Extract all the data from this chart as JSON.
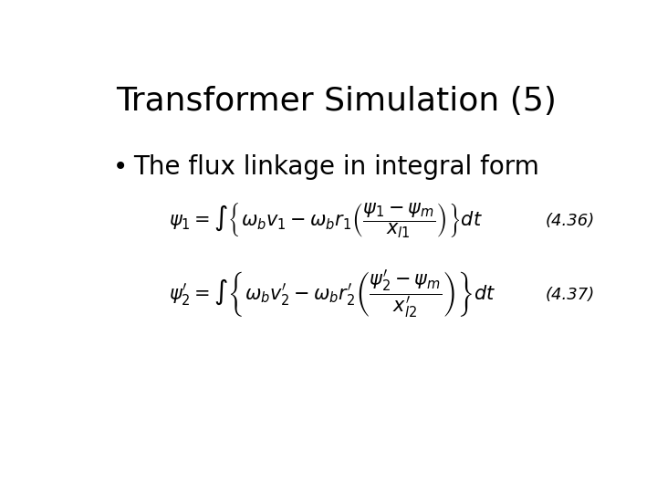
{
  "title": "Transformer Simulation (5)",
  "bullet": "The flux linkage in integral form",
  "eq1_label": "(4.36)",
  "eq2_label": "(4.37)",
  "bg_color": "#ffffff",
  "text_color": "#000000",
  "title_fontsize": 26,
  "bullet_fontsize": 20,
  "eq_fontsize": 15,
  "label_fontsize": 13
}
